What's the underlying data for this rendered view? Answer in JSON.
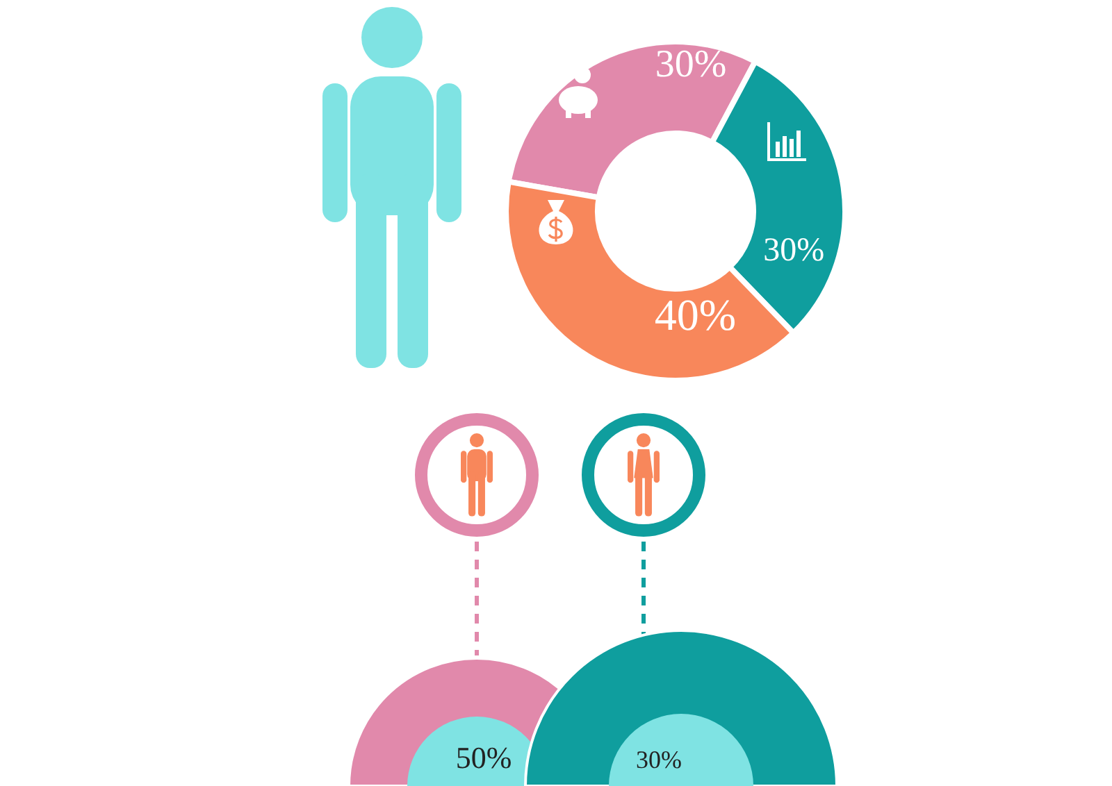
{
  "chart_data": [
    {
      "type": "donut",
      "categories": [
        null,
        null,
        null
      ],
      "values": [
        30,
        30,
        40
      ],
      "colors": [
        "#e189ab",
        "#0f9e9e",
        "#f8875b"
      ],
      "value_labels": [
        "30%",
        "30%",
        "40%"
      ]
    },
    {
      "type": "other",
      "annotations": [
        "50%",
        "30%"
      ]
    }
  ]
}
